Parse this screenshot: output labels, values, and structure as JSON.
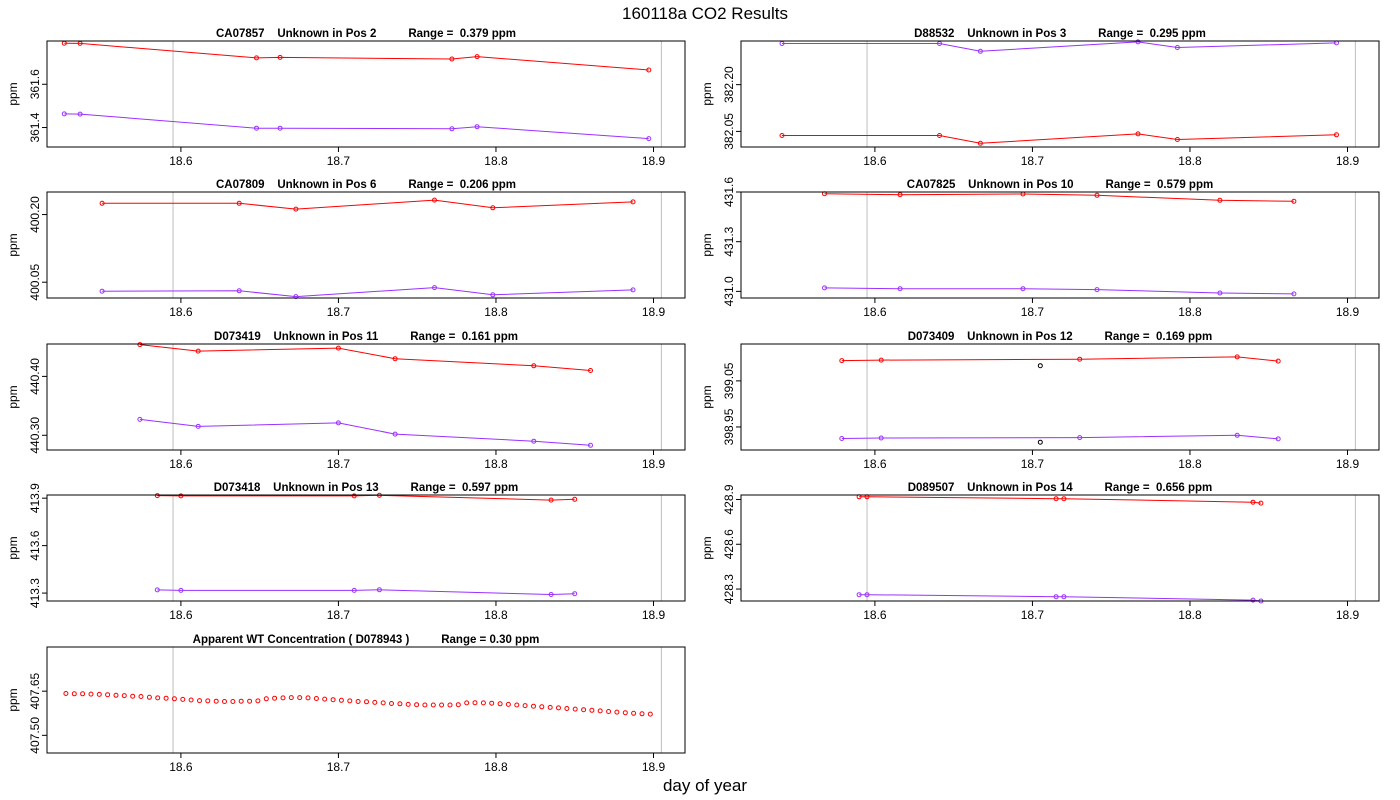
{
  "figure": {
    "title": "160118a  CO2 Results",
    "xlabel": "day of year"
  },
  "colors": {
    "series_a": "#ff0000",
    "series_b": "#9b30ff",
    "marker_dark": "#000000",
    "vline": "#bebebe",
    "axis": "#000000"
  },
  "chart_data": [
    {
      "type": "line",
      "title": "CA07857    Unknown in Pos 2          Range =  0.379 ppm",
      "ylabel": "ppm",
      "xlim": [
        18.515,
        18.92
      ],
      "ylim": [
        361.31,
        361.8
      ],
      "xticks": [
        18.6,
        18.7,
        18.8,
        18.9
      ],
      "xtick_labels": [
        "18.6",
        "18.7",
        "18.8",
        "18.9"
      ],
      "yticks": [
        361.4,
        361.6
      ],
      "ytick_labels": [
        "361.4",
        "361.6"
      ],
      "vlines": [
        18.595,
        18.905
      ],
      "series": [
        {
          "name": "red",
          "color": "#ff0000",
          "x": [
            18.526,
            18.536,
            18.648,
            18.663,
            18.772,
            18.788,
            18.897
          ],
          "y": [
            361.79,
            361.789,
            361.722,
            361.724,
            361.717,
            361.728,
            361.666
          ]
        },
        {
          "name": "purple",
          "color": "#9b30ff",
          "x": [
            18.526,
            18.536,
            18.648,
            18.663,
            18.772,
            18.788,
            18.897
          ],
          "y": [
            361.463,
            361.462,
            361.397,
            361.397,
            361.394,
            361.404,
            361.349
          ]
        }
      ]
    },
    {
      "type": "line",
      "title": "D88532    Unknown in Pos 3          Range =  0.295 ppm",
      "ylabel": "ppm",
      "xlim": [
        18.515,
        18.92
      ],
      "ylim": [
        382.0,
        382.34
      ],
      "xticks": [
        18.6,
        18.7,
        18.8,
        18.9
      ],
      "xtick_labels": [
        "18.6",
        "18.7",
        "18.8",
        "18.9"
      ],
      "yticks": [
        382.05,
        382.2
      ],
      "ytick_labels": [
        "382.05",
        "382.20"
      ],
      "vlines": [
        18.595,
        18.905
      ],
      "series": [
        {
          "name": "red",
          "color": "#ff0000",
          "x": [
            18.541,
            18.641,
            18.667,
            18.767,
            18.792,
            18.893
          ],
          "y": [
            382.037,
            382.037,
            382.012,
            382.042,
            382.024,
            382.039
          ]
        },
        {
          "name": "purple",
          "color": "#9b30ff",
          "x": [
            18.541,
            18.641,
            18.667,
            18.767,
            18.792,
            18.893
          ],
          "y": [
            382.332,
            382.332,
            382.307,
            382.337,
            382.319,
            382.334
          ]
        }
      ]
    },
    {
      "type": "line",
      "title": "CA07809    Unknown in Pos 6          Range =  0.206 ppm",
      "ylabel": "ppm",
      "xlim": [
        18.515,
        18.92
      ],
      "ylim": [
        400.015,
        400.25
      ],
      "xticks": [
        18.6,
        18.7,
        18.8,
        18.9
      ],
      "xtick_labels": [
        "18.6",
        "18.7",
        "18.8",
        "18.9"
      ],
      "yticks": [
        400.05,
        400.2
      ],
      "ytick_labels": [
        "400.05",
        "400.20"
      ],
      "vlines": [
        18.595,
        18.905
      ],
      "series": [
        {
          "name": "red",
          "color": "#ff0000",
          "x": [
            18.55,
            18.637,
            18.673,
            18.761,
            18.798,
            18.887
          ],
          "y": [
            400.225,
            400.225,
            400.212,
            400.232,
            400.215,
            400.228
          ]
        },
        {
          "name": "purple",
          "color": "#9b30ff",
          "x": [
            18.55,
            18.637,
            18.673,
            18.761,
            18.798,
            18.887
          ],
          "y": [
            400.03,
            400.031,
            400.018,
            400.038,
            400.022,
            400.033
          ]
        }
      ]
    },
    {
      "type": "line",
      "title": "CA07825    Unknown in Pos 10          Range =  0.579 ppm",
      "ylabel": "ppm",
      "xlim": [
        18.515,
        18.92
      ],
      "ylim": [
        430.96,
        431.6
      ],
      "xticks": [
        18.6,
        18.7,
        18.8,
        18.9
      ],
      "xtick_labels": [
        "18.6",
        "18.7",
        "18.8",
        "18.9"
      ],
      "yticks": [
        431.0,
        431.3,
        431.6
      ],
      "ytick_labels": [
        "431.0",
        "431.3",
        "431.6"
      ],
      "vlines": [
        18.595,
        18.905
      ],
      "series": [
        {
          "name": "red",
          "color": "#ff0000",
          "x": [
            18.568,
            18.616,
            18.694,
            18.741,
            18.819,
            18.866
          ],
          "y": [
            431.59,
            431.584,
            431.588,
            431.58,
            431.55,
            431.544
          ]
        },
        {
          "name": "purple",
          "color": "#9b30ff",
          "x": [
            18.568,
            18.616,
            18.694,
            18.741,
            18.819,
            18.866
          ],
          "y": [
            431.021,
            431.016,
            431.016,
            431.011,
            430.99,
            430.985
          ]
        }
      ]
    },
    {
      "type": "line",
      "title": "D073419    Unknown in Pos 11          Range =  0.161 ppm",
      "ylabel": "ppm",
      "xlim": [
        18.515,
        18.92
      ],
      "ylim": [
        440.275,
        440.455
      ],
      "xticks": [
        18.6,
        18.7,
        18.8,
        18.9
      ],
      "xtick_labels": [
        "18.6",
        "18.7",
        "18.8",
        "18.9"
      ],
      "yticks": [
        440.3,
        440.4
      ],
      "ytick_labels": [
        "440.30",
        "440.40"
      ],
      "vlines": [
        18.595,
        18.905
      ],
      "series": [
        {
          "name": "red",
          "color": "#ff0000",
          "x": [
            18.574,
            18.611,
            18.7,
            18.736,
            18.824,
            18.86
          ],
          "y": [
            440.454,
            440.443,
            440.448,
            440.43,
            440.418,
            440.41
          ]
        },
        {
          "name": "purple",
          "color": "#9b30ff",
          "x": [
            18.574,
            18.611,
            18.7,
            18.736,
            18.824,
            18.86
          ],
          "y": [
            440.327,
            440.315,
            440.321,
            440.302,
            440.29,
            440.283
          ]
        }
      ]
    },
    {
      "type": "line",
      "title": "D073409    Unknown in Pos 12          Range =  0.169 ppm",
      "ylabel": "ppm",
      "xlim": [
        18.515,
        18.92
      ],
      "ylim": [
        398.9,
        399.13
      ],
      "xticks": [
        18.6,
        18.7,
        18.8,
        18.9
      ],
      "xtick_labels": [
        "18.6",
        "18.7",
        "18.8",
        "18.9"
      ],
      "yticks": [
        398.95,
        399.05
      ],
      "ytick_labels": [
        "398.95",
        "399.05"
      ],
      "vlines": [
        18.595,
        18.905
      ],
      "series": [
        {
          "name": "red",
          "color": "#ff0000",
          "x": [
            18.579,
            18.604,
            18.73,
            18.83,
            18.856
          ],
          "y": [
            399.094,
            399.095,
            399.097,
            399.102,
            399.093
          ]
        },
        {
          "name": "purple",
          "color": "#9b30ff",
          "x": [
            18.579,
            18.604,
            18.73,
            18.83,
            18.856
          ],
          "y": [
            398.925,
            398.926,
            398.927,
            398.932,
            398.924
          ]
        },
        {
          "name": "outlier",
          "color": "#000000",
          "marker_only": true,
          "x": [
            18.705,
            18.705
          ],
          "y": [
            399.083,
            398.917
          ]
        }
      ]
    },
    {
      "type": "line",
      "title": "D073418    Unknown in Pos 13          Range =  0.597 ppm",
      "ylabel": "ppm",
      "xlim": [
        18.515,
        18.92
      ],
      "ylim": [
        413.25,
        413.92
      ],
      "xticks": [
        18.6,
        18.7,
        18.8,
        18.9
      ],
      "xtick_labels": [
        "18.6",
        "18.7",
        "18.8",
        "18.9"
      ],
      "yticks": [
        413.3,
        413.6,
        413.9
      ],
      "ytick_labels": [
        "413.3",
        "413.6",
        "413.9"
      ],
      "vlines": [
        18.595,
        18.905
      ],
      "series": [
        {
          "name": "red",
          "color": "#ff0000",
          "x": [
            18.585,
            18.6,
            18.71,
            18.726,
            18.835,
            18.85
          ],
          "y": [
            413.916,
            413.914,
            413.914,
            413.918,
            413.888,
            413.893
          ]
        },
        {
          "name": "purple",
          "color": "#9b30ff",
          "x": [
            18.585,
            18.6,
            18.71,
            18.726,
            18.835,
            18.85
          ],
          "y": [
            413.32,
            413.317,
            413.317,
            413.321,
            413.291,
            413.296
          ]
        }
      ]
    },
    {
      "type": "line",
      "title": "D089507    Unknown in Pos 14          Range =  0.656 ppm",
      "ylabel": "ppm",
      "xlim": [
        18.515,
        18.92
      ],
      "ylim": [
        428.22,
        428.93
      ],
      "xticks": [
        18.6,
        18.7,
        18.8,
        18.9
      ],
      "xtick_labels": [
        "18.6",
        "18.7",
        "18.8",
        "18.9"
      ],
      "yticks": [
        428.3,
        428.6,
        428.9
      ],
      "ytick_labels": [
        "428.3",
        "428.6",
        "428.9"
      ],
      "vlines": [
        18.595,
        18.905
      ],
      "series": [
        {
          "name": "red",
          "color": "#ff0000",
          "x": [
            18.59,
            18.595,
            18.715,
            18.72,
            18.84,
            18.845
          ],
          "y": [
            428.918,
            428.918,
            428.905,
            428.905,
            428.882,
            428.876
          ]
        },
        {
          "name": "purple",
          "color": "#9b30ff",
          "x": [
            18.59,
            18.595,
            18.715,
            18.72,
            18.84,
            18.845
          ],
          "y": [
            428.262,
            428.262,
            428.249,
            428.249,
            428.226,
            428.22
          ]
        }
      ]
    },
    {
      "type": "scatter",
      "title": "Apparent WT Concentration ( D078943 )          Range = 0.30 ppm",
      "ylabel": "ppm",
      "xlim": [
        18.515,
        18.92
      ],
      "ylim": [
        407.44,
        407.8
      ],
      "xticks": [
        18.6,
        18.7,
        18.8,
        18.9
      ],
      "xtick_labels": [
        "18.6",
        "18.7",
        "18.8",
        "18.9"
      ],
      "yticks": [
        407.5,
        407.65
      ],
      "ytick_labels": [
        "407.50",
        "407.65"
      ],
      "vlines": [
        18.595,
        18.905
      ],
      "series": [
        {
          "name": "WT",
          "color": "#ff0000",
          "marker_only": true,
          "x_start": 18.527,
          "x_step": 0.0053,
          "count": 71,
          "y": [
            407.642,
            407.641,
            407.641,
            407.64,
            407.639,
            407.638,
            407.636,
            407.635,
            407.633,
            407.632,
            407.629,
            407.627,
            407.626,
            407.624,
            407.622,
            407.62,
            407.618,
            407.617,
            407.616,
            407.615,
            407.615,
            407.616,
            407.616,
            407.617,
            407.624,
            407.626,
            407.627,
            407.628,
            407.628,
            407.627,
            407.625,
            407.623,
            407.621,
            407.619,
            407.617,
            407.615,
            407.614,
            407.612,
            407.61,
            407.608,
            407.607,
            407.605,
            407.604,
            407.603,
            407.603,
            407.603,
            407.603,
            407.604,
            407.61,
            407.611,
            407.61,
            407.609,
            407.607,
            407.605,
            407.603,
            407.601,
            407.599,
            407.597,
            407.595,
            407.593,
            407.591,
            407.589,
            407.587,
            407.585,
            407.583,
            407.581,
            407.579,
            407.577,
            407.575,
            407.573,
            407.572
          ]
        }
      ]
    }
  ]
}
